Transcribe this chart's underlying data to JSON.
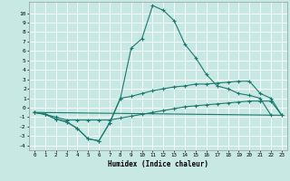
{
  "xlabel": "Humidex (Indice chaleur)",
  "bg_color": "#c8e8e4",
  "grid_color": "#ffffff",
  "line_color": "#1a7a6e",
  "xlim": [
    -0.5,
    23.5
  ],
  "ylim": [
    -4.5,
    11.2
  ],
  "xticks": [
    0,
    1,
    2,
    3,
    4,
    5,
    6,
    7,
    8,
    9,
    10,
    11,
    12,
    13,
    14,
    15,
    16,
    17,
    18,
    19,
    20,
    21,
    22,
    23
  ],
  "yticks": [
    -4,
    -3,
    -2,
    -1,
    0,
    1,
    2,
    3,
    4,
    5,
    6,
    7,
    8,
    9,
    10
  ],
  "series1_x": [
    0,
    1,
    2,
    3,
    4,
    5,
    6,
    7,
    8,
    9,
    10,
    11,
    12,
    13,
    14,
    15,
    16,
    17,
    18,
    19,
    20,
    21,
    22
  ],
  "series1_y": [
    -0.5,
    -0.7,
    -1.2,
    -1.5,
    -2.2,
    -3.3,
    -3.5,
    -1.6,
    1.0,
    6.3,
    7.3,
    10.8,
    10.3,
    9.2,
    6.7,
    5.3,
    3.5,
    2.3,
    2.0,
    1.5,
    1.3,
    1.0,
    -0.8
  ],
  "series2_x": [
    0,
    1,
    2,
    3,
    4,
    5,
    6,
    7,
    8,
    9,
    10,
    11,
    12,
    13,
    14,
    15,
    16,
    17,
    18,
    19,
    20,
    21,
    22,
    23
  ],
  "series2_y": [
    -0.5,
    -0.7,
    -1.2,
    -1.5,
    -2.2,
    -3.3,
    -3.5,
    -1.6,
    1.0,
    1.2,
    1.5,
    1.8,
    2.0,
    2.2,
    2.3,
    2.5,
    2.5,
    2.6,
    2.7,
    2.8,
    2.8,
    1.5,
    1.0,
    -0.8
  ],
  "series3_x": [
    0,
    1,
    2,
    3,
    4,
    5,
    6,
    7,
    8,
    9,
    10,
    11,
    12,
    13,
    14,
    15,
    16,
    17,
    18,
    19,
    20,
    21,
    22,
    23
  ],
  "series3_y": [
    -0.5,
    -0.7,
    -1.0,
    -1.3,
    -1.3,
    -1.3,
    -1.3,
    -1.3,
    -1.1,
    -0.9,
    -0.7,
    -0.5,
    -0.3,
    -0.1,
    0.1,
    0.2,
    0.3,
    0.4,
    0.5,
    0.6,
    0.7,
    0.7,
    0.7,
    -0.8
  ],
  "series4_x": [
    0,
    23
  ],
  "series4_y": [
    -0.5,
    -0.8
  ]
}
